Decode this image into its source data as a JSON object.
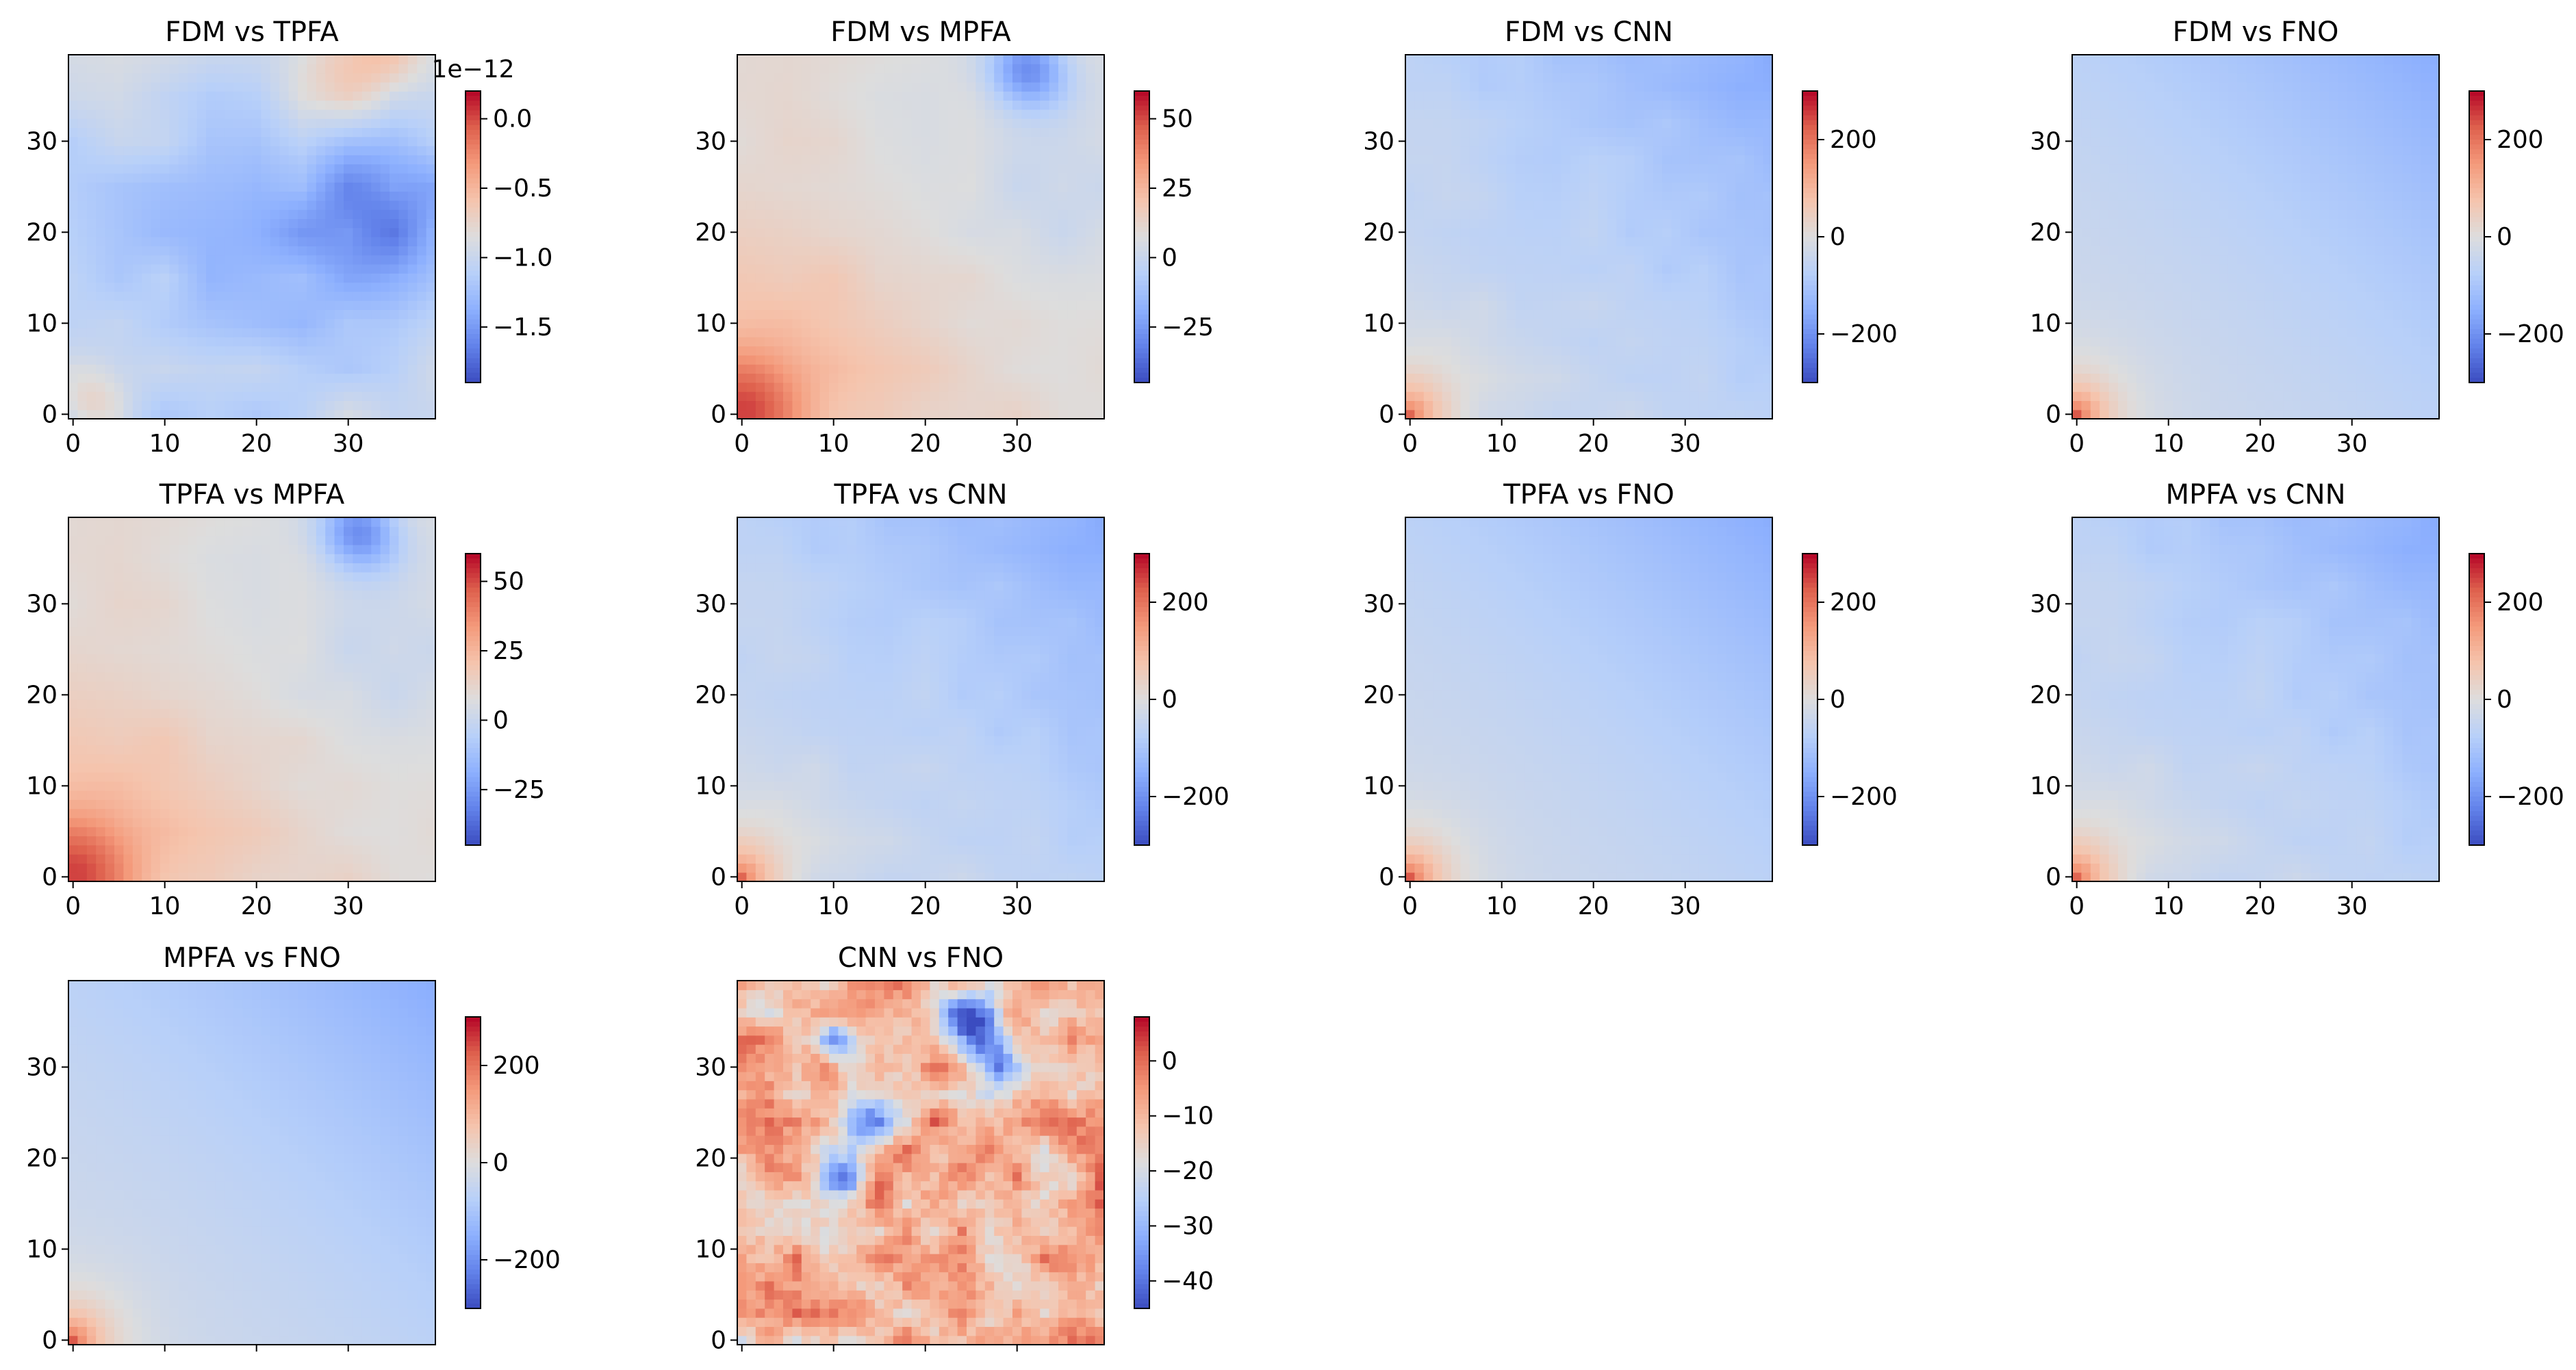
{
  "figure": {
    "name": "pairwise-difference-heatmaps"
  },
  "chart_data": [
    {
      "type": "heatmap",
      "title": "FDM vs TPFA",
      "pattern": "tpfa",
      "x_ticks": [
        "0",
        "10",
        "20",
        "30"
      ],
      "y_ticks": [
        "0",
        "10",
        "20",
        "30"
      ],
      "clim": [
        -1.9,
        0.2
      ],
      "colorbar_ticks": [
        "0.0",
        "−0.5",
        "−1.0",
        "−1.5"
      ],
      "colorbar_values": [
        0.0,
        -0.5,
        -1.0,
        -1.5
      ],
      "colorbar_offset": "1e−12",
      "colormap": "coolwarm",
      "grid_size": 40
    },
    {
      "type": "heatmap",
      "title": "FDM vs MPFA",
      "pattern": "mpfa",
      "x_ticks": [
        "0",
        "10",
        "20",
        "30"
      ],
      "y_ticks": [
        "0",
        "10",
        "20",
        "30"
      ],
      "clim": [
        -45,
        60
      ],
      "colorbar_ticks": [
        "50",
        "25",
        "0",
        "−25"
      ],
      "colorbar_values": [
        50,
        25,
        0,
        -25
      ],
      "colormap": "coolwarm",
      "grid_size": 40
    },
    {
      "type": "heatmap",
      "title": "FDM vs CNN",
      "pattern": "cnn",
      "x_ticks": [
        "0",
        "10",
        "20",
        "30"
      ],
      "y_ticks": [
        "0",
        "10",
        "20",
        "30"
      ],
      "clim": [
        -300,
        300
      ],
      "colorbar_ticks": [
        "200",
        "0",
        "−200"
      ],
      "colorbar_values": [
        200,
        0,
        -200
      ],
      "colormap": "coolwarm",
      "grid_size": 40
    },
    {
      "type": "heatmap",
      "title": "FDM vs FNO",
      "pattern": "smooth",
      "x_ticks": [
        "0",
        "10",
        "20",
        "30"
      ],
      "y_ticks": [
        "0",
        "10",
        "20",
        "30"
      ],
      "clim": [
        -300,
        300
      ],
      "colorbar_ticks": [
        "200",
        "0",
        "−200"
      ],
      "colorbar_values": [
        200,
        0,
        -200
      ],
      "colormap": "coolwarm",
      "grid_size": 40
    },
    {
      "type": "heatmap",
      "title": "TPFA vs MPFA",
      "pattern": "mpfa",
      "x_ticks": [
        "0",
        "10",
        "20",
        "30"
      ],
      "y_ticks": [
        "0",
        "10",
        "20",
        "30"
      ],
      "clim": [
        -45,
        60
      ],
      "colorbar_ticks": [
        "50",
        "25",
        "0",
        "−25"
      ],
      "colorbar_values": [
        50,
        25,
        0,
        -25
      ],
      "colormap": "coolwarm",
      "grid_size": 40
    },
    {
      "type": "heatmap",
      "title": "TPFA vs CNN",
      "pattern": "cnn",
      "x_ticks": [
        "0",
        "10",
        "20",
        "30"
      ],
      "y_ticks": [
        "0",
        "10",
        "20",
        "30"
      ],
      "clim": [
        -300,
        300
      ],
      "colorbar_ticks": [
        "200",
        "0",
        "−200"
      ],
      "colorbar_values": [
        200,
        0,
        -200
      ],
      "colormap": "coolwarm",
      "grid_size": 40
    },
    {
      "type": "heatmap",
      "title": "TPFA vs FNO",
      "pattern": "smooth",
      "x_ticks": [
        "0",
        "10",
        "20",
        "30"
      ],
      "y_ticks": [
        "0",
        "10",
        "20",
        "30"
      ],
      "clim": [
        -300,
        300
      ],
      "colorbar_ticks": [
        "200",
        "0",
        "−200"
      ],
      "colorbar_values": [
        200,
        0,
        -200
      ],
      "colormap": "coolwarm",
      "grid_size": 40
    },
    {
      "type": "heatmap",
      "title": "MPFA vs CNN",
      "pattern": "cnn",
      "x_ticks": [
        "0",
        "10",
        "20",
        "30"
      ],
      "y_ticks": [
        "0",
        "10",
        "20",
        "30"
      ],
      "clim": [
        -300,
        300
      ],
      "colorbar_ticks": [
        "200",
        "0",
        "−200"
      ],
      "colorbar_values": [
        200,
        0,
        -200
      ],
      "colormap": "coolwarm",
      "grid_size": 40
    },
    {
      "type": "heatmap",
      "title": "MPFA vs FNO",
      "pattern": "smooth",
      "x_ticks": [
        "",
        "",
        "",
        ""
      ],
      "y_ticks": [
        "0",
        "10",
        "20",
        "30"
      ],
      "clim": [
        -300,
        300
      ],
      "colorbar_ticks": [
        "200",
        "0",
        "−200"
      ],
      "colorbar_values": [
        200,
        0,
        -200
      ],
      "colormap": "coolwarm",
      "grid_size": 40
    },
    {
      "type": "heatmap",
      "title": "CNN vs FNO",
      "pattern": "noisy",
      "x_ticks": [
        "",
        "",
        "",
        ""
      ],
      "y_ticks": [
        "0",
        "10",
        "20",
        "30"
      ],
      "clim": [
        -45,
        8
      ],
      "colorbar_ticks": [
        "0",
        "−10",
        "−20",
        "−30",
        "−40"
      ],
      "colorbar_values": [
        0,
        -10,
        -20,
        -30,
        -40
      ],
      "colormap": "coolwarm",
      "grid_size": 40
    }
  ]
}
